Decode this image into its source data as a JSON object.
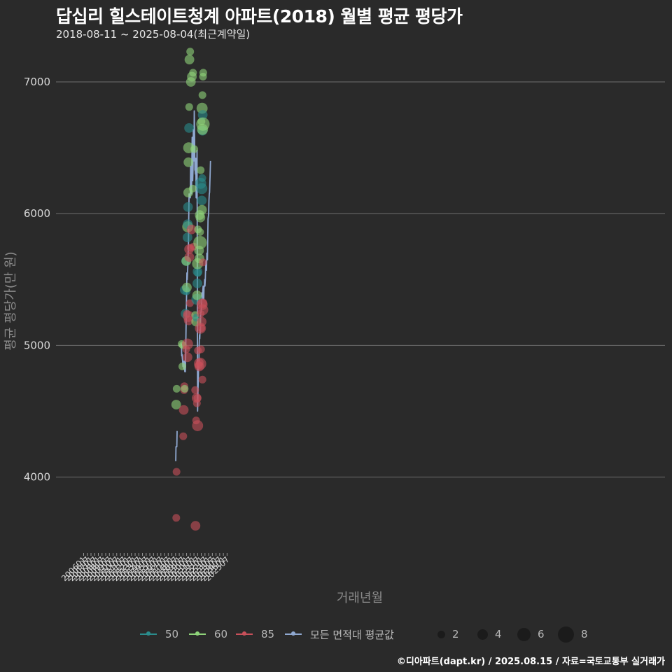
{
  "title": "답십리 힐스테이트청계 아파트(2018) 월별 평균 평당가",
  "subtitle": "2018-08-11 ~ 2025-08-04(최근계약일)",
  "caption": "©디아파트(dapt.kr) / 2025.08.15 / 자료=국토교통부 실거래가",
  "colors": {
    "background": "#2a2a2a",
    "grid": "#6e6e6e",
    "s50": "#2a8c8c",
    "s60": "#8fd47a",
    "s85": "#c8505a",
    "avg": "#8fa8d0"
  },
  "chart_data": {
    "type": "scatter",
    "title": "답십리 힐스테이트청계 아파트(2018) 월별 평균 평당가",
    "xlabel": "거래년월",
    "ylabel": "평균 평당가(만 원)",
    "ylim": [
      3450,
      7250
    ],
    "yticks": [
      4000,
      5000,
      6000,
      7000
    ],
    "xticks": [
      "200601",
      "200607",
      "200701",
      "200707",
      "200801",
      "200807",
      "200901",
      "200907",
      "201001",
      "201007",
      "201101",
      "201107",
      "201201",
      "201207",
      "201301",
      "201307",
      "201401",
      "201407",
      "201501",
      "201507",
      "201601",
      "201607",
      "201701",
      "201707",
      "201801",
      "201807",
      "201901",
      "201907",
      "202001",
      "202007",
      "202101",
      "202107",
      "202201",
      "202207",
      "202301",
      "202307",
      "202401",
      "202407",
      "202501",
      "202507"
    ],
    "legend": {
      "series": [
        {
          "key": "s50",
          "label": "50"
        },
        {
          "key": "s60",
          "label": "60"
        },
        {
          "key": "s85",
          "label": "85"
        },
        {
          "key": "avg",
          "label": "모든 면적대 평균값"
        }
      ],
      "sizes": [
        {
          "label": "2",
          "value": 2
        },
        {
          "label": "4",
          "value": 4
        },
        {
          "label": "6",
          "value": 6
        },
        {
          "label": "8",
          "value": 8
        }
      ]
    },
    "average_line_segments": [
      [
        [
          150.3,
          4120
        ],
        [
          150.6,
          4230
        ],
        [
          151.4,
          4230
        ],
        [
          152.0,
          4230
        ],
        [
          152.5,
          4350
        ]
      ],
      [
        [
          159.0,
          5000
        ],
        [
          159.6,
          5010
        ],
        [
          160.0,
          4920
        ],
        [
          160.6,
          4930
        ],
        [
          161.0,
          4900
        ],
        [
          161.5,
          4880
        ],
        [
          162.0,
          4840
        ],
        [
          162.5,
          4880
        ],
        [
          163.0,
          4860
        ],
        [
          163.5,
          4820
        ],
        [
          164.0,
          4880
        ],
        [
          164.5,
          4840
        ],
        [
          165.0,
          4800
        ],
        [
          166.0,
          4800
        ],
        [
          166.5,
          4950
        ],
        [
          167.0,
          5100
        ],
        [
          167.5,
          5250
        ],
        [
          168.0,
          5400
        ],
        [
          168.5,
          5550
        ],
        [
          169.0,
          5500
        ],
        [
          169.5,
          5550
        ],
        [
          170.0,
          5600
        ],
        [
          170.5,
          5700
        ],
        [
          171.0,
          5750
        ],
        [
          171.5,
          5950
        ],
        [
          172.0,
          6150
        ],
        [
          172.5,
          6120
        ],
        [
          173.0,
          6140
        ],
        [
          174.0,
          6120
        ],
        [
          174.5,
          6360
        ],
        [
          175.0,
          6340
        ],
        [
          175.5,
          6320
        ],
        [
          176.0,
          6150
        ],
        [
          176.5,
          6350
        ],
        [
          177.0,
          6580
        ],
        [
          177.5,
          6450
        ],
        [
          178.0,
          6250
        ],
        [
          178.5,
          6350
        ],
        [
          179.0,
          6640
        ],
        [
          179.5,
          6500
        ],
        [
          180.0,
          6400
        ],
        [
          180.5,
          6780
        ],
        [
          181.0,
          6600
        ],
        [
          181.5,
          6330
        ],
        [
          182.0,
          6330
        ],
        [
          182.5,
          6300
        ],
        [
          183.0,
          6420
        ],
        [
          183.5,
          6120
        ],
        [
          184.0,
          6120
        ],
        [
          184.5,
          6200
        ],
        [
          185.0,
          6480
        ],
        [
          186.0,
          4500
        ],
        [
          186.5,
          4650
        ],
        [
          187.0,
          4720
        ],
        [
          187.5,
          4850
        ],
        [
          188.0,
          4830
        ],
        [
          188.5,
          5000
        ],
        [
          189.0,
          5080
        ],
        [
          189.5,
          5050
        ],
        [
          190.0,
          5120
        ],
        [
          190.5,
          5100
        ],
        [
          191.0,
          5250
        ],
        [
          191.5,
          5250
        ],
        [
          192.0,
          5280
        ],
        [
          192.5,
          5330
        ],
        [
          193.0,
          5400
        ],
        [
          193.5,
          5350
        ],
        [
          194.0,
          5360
        ],
        [
          194.5,
          5420
        ],
        [
          195.0,
          5450
        ],
        [
          195.5,
          5380
        ],
        [
          196.0,
          5350
        ],
        [
          196.5,
          5440
        ],
        [
          197.0,
          5450
        ],
        [
          197.5,
          5500
        ],
        [
          198.0,
          5450
        ],
        [
          198.5,
          5500
        ],
        [
          199.0,
          5580
        ],
        [
          199.5,
          5640
        ],
        [
          200.0,
          5600
        ],
        [
          200.5,
          5570
        ],
        [
          201.0,
          5700
        ],
        [
          201.5,
          5680
        ],
        [
          202.0,
          5650
        ],
        [
          202.5,
          5820
        ],
        [
          203.0,
          5960
        ],
        [
          203.5,
          5980
        ],
        [
          204.0,
          6000
        ],
        [
          204.5,
          6100
        ],
        [
          205.0,
          6150
        ],
        [
          205.5,
          6160
        ],
        [
          206.0,
          6250
        ],
        [
          206.5,
          6320
        ],
        [
          207.0,
          6400
        ]
      ]
    ],
    "points": [
      {
        "s": "s85",
        "x": 151.1,
        "y": 3690,
        "n": 1
      },
      {
        "s": "s85",
        "x": 151.6,
        "y": 4040,
        "n": 1
      },
      {
        "s": "s60",
        "x": 151.0,
        "y": 4550,
        "n": 2
      },
      {
        "s": "s60",
        "x": 151.8,
        "y": 4670,
        "n": 1
      },
      {
        "s": "s60",
        "x": 159.8,
        "y": 5010,
        "n": 1
      },
      {
        "s": "s60",
        "x": 161.0,
        "y": 4840,
        "n": 1
      },
      {
        "s": "s60",
        "x": 162.0,
        "y": 5000,
        "n": 1
      },
      {
        "s": "s85",
        "x": 162.5,
        "y": 4310,
        "n": 1
      },
      {
        "s": "s85",
        "x": 163.3,
        "y": 4510,
        "n": 2
      },
      {
        "s": "s85",
        "x": 163.9,
        "y": 4660,
        "n": 1
      },
      {
        "s": "s85",
        "x": 164.3,
        "y": 4690,
        "n": 1
      },
      {
        "s": "s60",
        "x": 164.8,
        "y": 4670,
        "n": 1
      },
      {
        "s": "s50",
        "x": 165.0,
        "y": 5420,
        "n": 2
      },
      {
        "s": "s50",
        "x": 166.3,
        "y": 5240,
        "n": 2
      },
      {
        "s": "s85",
        "x": 167.3,
        "y": 4970,
        "n": 1
      },
      {
        "s": "s50",
        "x": 167.2,
        "y": 5640,
        "n": 2
      },
      {
        "s": "s60",
        "x": 167.6,
        "y": 5640,
        "n": 2
      },
      {
        "s": "s50",
        "x": 168.0,
        "y": 5410,
        "n": 1
      },
      {
        "s": "s60",
        "x": 168.5,
        "y": 5440,
        "n": 2
      },
      {
        "s": "s85",
        "x": 168.7,
        "y": 5240,
        "n": 1
      },
      {
        "s": "s85",
        "x": 169.5,
        "y": 4910,
        "n": 2
      },
      {
        "s": "s85",
        "x": 169.5,
        "y": 5010,
        "n": 3
      },
      {
        "s": "s50",
        "x": 169.5,
        "y": 5820,
        "n": 2
      },
      {
        "s": "s60",
        "x": 169.9,
        "y": 5900,
        "n": 3
      },
      {
        "s": "s50",
        "x": 169.9,
        "y": 5920,
        "n": 2
      },
      {
        "s": "s50",
        "x": 170.3,
        "y": 6050,
        "n": 2
      },
      {
        "s": "s60",
        "x": 170.6,
        "y": 6160,
        "n": 2
      },
      {
        "s": "s60",
        "x": 171.0,
        "y": 6390,
        "n": 2
      },
      {
        "s": "s85",
        "x": 171.0,
        "y": 5220,
        "n": 3
      },
      {
        "s": "s85",
        "x": 171.5,
        "y": 5190,
        "n": 2
      },
      {
        "s": "s60",
        "x": 171.5,
        "y": 6500,
        "n": 3
      },
      {
        "s": "s50",
        "x": 172.0,
        "y": 6650,
        "n": 2
      },
      {
        "s": "s85",
        "x": 172.0,
        "y": 5730,
        "n": 2
      },
      {
        "s": "s85",
        "x": 172.5,
        "y": 5670,
        "n": 2
      },
      {
        "s": "s60",
        "x": 172.2,
        "y": 6810,
        "n": 1
      },
      {
        "s": "s60",
        "x": 172.6,
        "y": 7170,
        "n": 2
      },
      {
        "s": "s85",
        "x": 173.5,
        "y": 5320,
        "n": 1
      },
      {
        "s": "s60",
        "x": 173.8,
        "y": 7230,
        "n": 1
      },
      {
        "s": "s85",
        "x": 174.6,
        "y": 5740,
        "n": 1
      },
      {
        "s": "s60",
        "x": 175.0,
        "y": 7000,
        "n": 2
      },
      {
        "s": "s85",
        "x": 176.0,
        "y": 5880,
        "n": 2
      },
      {
        "s": "s60",
        "x": 176.6,
        "y": 7040,
        "n": 2
      },
      {
        "s": "s60",
        "x": 178.0,
        "y": 6190,
        "n": 1
      },
      {
        "s": "s60",
        "x": 178.5,
        "y": 7070,
        "n": 1
      },
      {
        "s": "s85",
        "x": 179.6,
        "y": 5750,
        "n": 1
      },
      {
        "s": "s60",
        "x": 180.5,
        "y": 6490,
        "n": 1
      },
      {
        "s": "s60",
        "x": 182.0,
        "y": 5230,
        "n": 1
      },
      {
        "s": "s85",
        "x": 182.0,
        "y": 4660,
        "n": 1
      },
      {
        "s": "s85",
        "x": 182.5,
        "y": 3630,
        "n": 2
      },
      {
        "s": "s85",
        "x": 183.5,
        "y": 4430,
        "n": 1
      },
      {
        "s": "s60",
        "x": 183.5,
        "y": 5180,
        "n": 2
      },
      {
        "s": "s50",
        "x": 183.8,
        "y": 5210,
        "n": 1
      },
      {
        "s": "s85",
        "x": 184.3,
        "y": 4600,
        "n": 2
      },
      {
        "s": "s85",
        "x": 184.8,
        "y": 4560,
        "n": 1
      },
      {
        "s": "s50",
        "x": 184.8,
        "y": 5350,
        "n": 3
      },
      {
        "s": "s60",
        "x": 185.2,
        "y": 5380,
        "n": 2
      },
      {
        "s": "s85",
        "x": 185.6,
        "y": 4600,
        "n": 1
      },
      {
        "s": "s50",
        "x": 185.6,
        "y": 5470,
        "n": 2
      },
      {
        "s": "s85",
        "x": 186.0,
        "y": 4390,
        "n": 3
      },
      {
        "s": "s50",
        "x": 186.0,
        "y": 5560,
        "n": 2
      },
      {
        "s": "s60",
        "x": 186.0,
        "y": 5620,
        "n": 3
      },
      {
        "s": "s85",
        "x": 186.5,
        "y": 4960,
        "n": 1
      },
      {
        "s": "s50",
        "x": 186.5,
        "y": 5550,
        "n": 1
      },
      {
        "s": "s60",
        "x": 186.6,
        "y": 5880,
        "n": 1
      },
      {
        "s": "s85",
        "x": 188.0,
        "y": 4850,
        "n": 1
      },
      {
        "s": "s60",
        "x": 188.4,
        "y": 5720,
        "n": 2
      },
      {
        "s": "s85",
        "x": 188.8,
        "y": 4840,
        "n": 2
      },
      {
        "s": "s60",
        "x": 189.0,
        "y": 5660,
        "n": 2
      },
      {
        "s": "s85",
        "x": 189.5,
        "y": 4870,
        "n": 1
      },
      {
        "s": "s60",
        "x": 189.4,
        "y": 5990,
        "n": 2
      },
      {
        "s": "s85",
        "x": 190.0,
        "y": 4860,
        "n": 4
      },
      {
        "s": "s60",
        "x": 190.0,
        "y": 5780,
        "n": 5
      },
      {
        "s": "s60",
        "x": 190.0,
        "y": 5860,
        "n": 1
      },
      {
        "s": "s85",
        "x": 190.5,
        "y": 5130,
        "n": 3
      },
      {
        "s": "s60",
        "x": 190.5,
        "y": 5970,
        "n": 2
      },
      {
        "s": "s85",
        "x": 190.8,
        "y": 5240,
        "n": 1
      },
      {
        "s": "s50",
        "x": 191.0,
        "y": 6230,
        "n": 3
      },
      {
        "s": "s60",
        "x": 191.0,
        "y": 6330,
        "n": 1
      },
      {
        "s": "s85",
        "x": 191.5,
        "y": 4970,
        "n": 1
      },
      {
        "s": "s85",
        "x": 192.0,
        "y": 5130,
        "n": 1
      },
      {
        "s": "s85",
        "x": 192.5,
        "y": 5180,
        "n": 2
      },
      {
        "s": "s60",
        "x": 192.2,
        "y": 6700,
        "n": 1
      },
      {
        "s": "s50",
        "x": 192.8,
        "y": 6100,
        "n": 2
      },
      {
        "s": "s50",
        "x": 192.8,
        "y": 6190,
        "n": 3
      },
      {
        "s": "s60",
        "x": 193.0,
        "y": 6030,
        "n": 2
      },
      {
        "s": "s85",
        "x": 193.3,
        "y": 5310,
        "n": 3
      },
      {
        "s": "s60",
        "x": 193.3,
        "y": 6800,
        "n": 3
      },
      {
        "s": "s50",
        "x": 193.6,
        "y": 6270,
        "n": 1
      },
      {
        "s": "s85",
        "x": 193.8,
        "y": 4740,
        "n": 1
      },
      {
        "s": "s85",
        "x": 193.8,
        "y": 5320,
        "n": 2
      },
      {
        "s": "s60",
        "x": 193.8,
        "y": 6900,
        "n": 1
      },
      {
        "s": "s50",
        "x": 194.0,
        "y": 6630,
        "n": 2
      },
      {
        "s": "s60",
        "x": 194.0,
        "y": 6640,
        "n": 3
      },
      {
        "s": "s85",
        "x": 194.3,
        "y": 5270,
        "n": 3
      },
      {
        "s": "s50",
        "x": 194.3,
        "y": 6750,
        "n": 2
      },
      {
        "s": "s60",
        "x": 194.6,
        "y": 6680,
        "n": 5
      },
      {
        "s": "s85",
        "x": 194.7,
        "y": 5630,
        "n": 1
      },
      {
        "s": "s60",
        "x": 194.8,
        "y": 7040,
        "n": 1
      },
      {
        "s": "s60",
        "x": 195.2,
        "y": 7070,
        "n": 1
      }
    ]
  }
}
